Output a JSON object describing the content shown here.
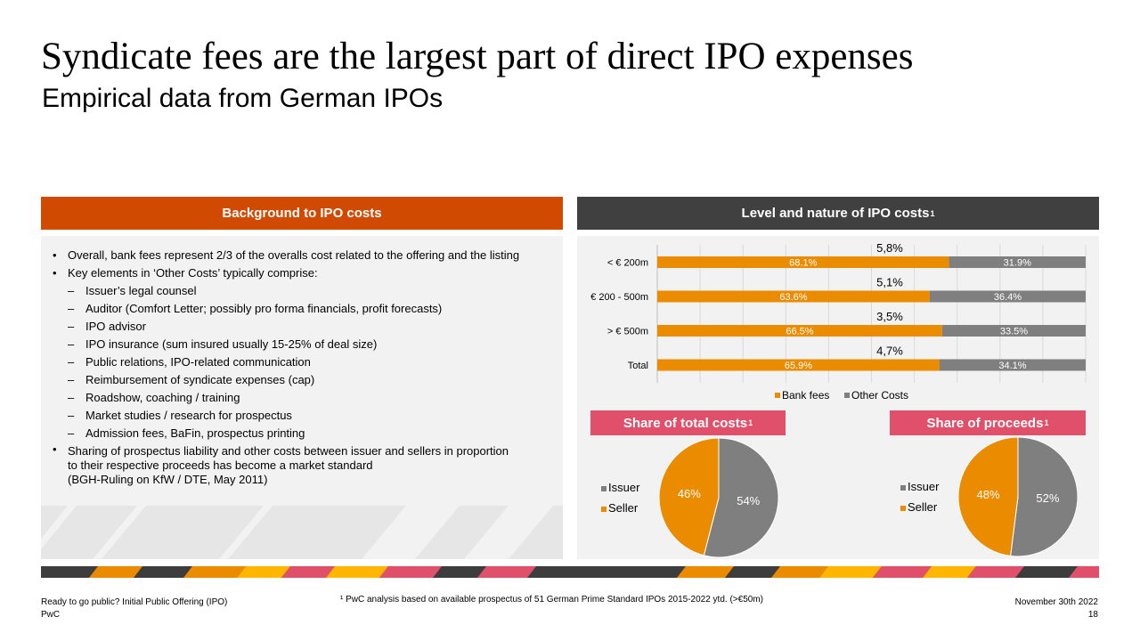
{
  "header": {
    "title": "Syndicate fees are the largest part of direct IPO expenses",
    "subtitle": "Empirical data from German IPOs"
  },
  "left_panel": {
    "title": "Background to IPO costs",
    "bullets": [
      {
        "marker": "•",
        "level": 1,
        "text": "Overall, bank fees represent 2/3 of the overalls cost related to the offering and the listing"
      },
      {
        "marker": "•",
        "level": 1,
        "text": "Key elements in ‘Other Costs’ typically comprise:"
      },
      {
        "marker": "–",
        "level": 2,
        "text": "Issuer’s legal counsel"
      },
      {
        "marker": "–",
        "level": 2,
        "text": "Auditor (Comfort Letter; possibly pro forma financials, profit forecasts)"
      },
      {
        "marker": "–",
        "level": 2,
        "text": "IPO advisor"
      },
      {
        "marker": "–",
        "level": 2,
        "text": "IPO insurance (sum insured usually 15-25% of deal size)"
      },
      {
        "marker": "–",
        "level": 2,
        "text": "Public relations, IPO-related communication"
      },
      {
        "marker": "–",
        "level": 2,
        "text": "Reimbursement of syndicate expenses (cap)"
      },
      {
        "marker": "–",
        "level": 2,
        "text": "Roadshow, coaching / training"
      },
      {
        "marker": "–",
        "level": 2,
        "text": "Market studies / research for prospectus"
      },
      {
        "marker": "–",
        "level": 2,
        "text": "Admission fees, BaFin, prospectus printing"
      },
      {
        "marker": "•",
        "level": 1,
        "text": "Sharing of prospectus liability and other costs between issuer and sellers in proportion\nto their respective proceeds has become a market standard\n(BGH-Ruling on KfW / DTE, May 2011)"
      }
    ]
  },
  "right_panel": {
    "title": "Level and nature of IPO costs",
    "title_sup": "1"
  },
  "chart_data": [
    {
      "type": "bar",
      "orientation": "horizontal",
      "stacked": "percent",
      "title": "Level and nature of IPO costs",
      "categories": [
        "< € 200m",
        "€ 200 - 500m",
        "> € 500m",
        "Total"
      ],
      "series": [
        {
          "name": "Bank fees",
          "color": "#eb8c00",
          "values": [
            68.1,
            63.6,
            66.5,
            65.9
          ],
          "labels": [
            "68.1%",
            "63.6%",
            "66.5%",
            "65.9%"
          ]
        },
        {
          "name": "Other Costs",
          "color": "#7f7f7f",
          "values": [
            31.9,
            36.4,
            33.5,
            34.1
          ],
          "labels": [
            "31.9%",
            "36.4%",
            "33.5%",
            "34.1%"
          ]
        }
      ],
      "annotations": [
        "5,8%",
        "5,1%",
        "3,5%",
        "4,7%"
      ],
      "xlim": [
        0,
        100
      ],
      "grid": true,
      "legend": "bottom"
    },
    {
      "type": "pie",
      "title": "Share of total costs",
      "title_sup": "1",
      "slices": [
        {
          "name": "Issuer",
          "value": 54,
          "label": "54%",
          "color": "#7f7f7f"
        },
        {
          "name": "Seller",
          "value": 46,
          "label": "46%",
          "color": "#eb8c00"
        }
      ],
      "legend": "left"
    },
    {
      "type": "pie",
      "title": "Share of proceeds",
      "title_sup": "1",
      "slices": [
        {
          "name": "Issuer",
          "value": 52,
          "label": "52%",
          "color": "#7f7f7f"
        },
        {
          "name": "Seller",
          "value": 48,
          "label": "48%",
          "color": "#eb8c00"
        }
      ],
      "legend": "left"
    }
  ],
  "footer": {
    "left_line1": "Ready to go public? Initial Public Offering (IPO)",
    "left_line2": "PwC",
    "footnote": "¹ PwC analysis based on available prospectus of 51 German Prime Standard IPOs 2015-2022 ytd. (>€50m)",
    "date": "November 30th 2022",
    "page": "18"
  }
}
